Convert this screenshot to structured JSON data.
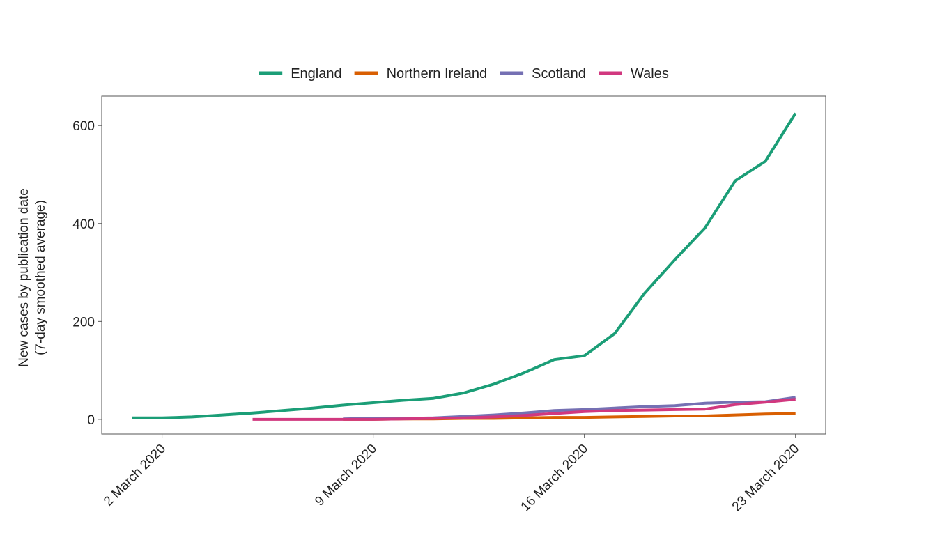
{
  "chart_data": {
    "type": "line",
    "title": "",
    "xlabel": "",
    "ylabel": [
      "New cases by publication date",
      "(7-day smoothed average)"
    ],
    "x_tick_labels": [
      {
        "date": "2020-03-02",
        "label": "2 March 2020"
      },
      {
        "date": "2020-03-09",
        "label": "9 March 2020"
      },
      {
        "date": "2020-03-16",
        "label": "16 March 2020"
      },
      {
        "date": "2020-03-23",
        "label": "23 March 2020"
      }
    ],
    "xlim": [
      "2020-02-29",
      "2020-03-24"
    ],
    "ylim": [
      -30,
      660
    ],
    "y_ticks": [
      0,
      200,
      400,
      600
    ],
    "grid": false,
    "legend_position": "top",
    "series": [
      {
        "name": "England",
        "color": "#1b9e77",
        "points": [
          [
            "2020-03-01",
            3
          ],
          [
            "2020-03-02",
            3
          ],
          [
            "2020-03-03",
            5
          ],
          [
            "2020-03-04",
            9
          ],
          [
            "2020-03-05",
            13
          ],
          [
            "2020-03-06",
            18
          ],
          [
            "2020-03-07",
            23
          ],
          [
            "2020-03-08",
            29
          ],
          [
            "2020-03-09",
            34
          ],
          [
            "2020-03-10",
            39
          ],
          [
            "2020-03-11",
            43
          ],
          [
            "2020-03-12",
            54
          ],
          [
            "2020-03-13",
            72
          ],
          [
            "2020-03-14",
            95
          ],
          [
            "2020-03-15",
            122
          ],
          [
            "2020-03-16",
            130
          ],
          [
            "2020-03-17",
            175
          ],
          [
            "2020-03-18",
            258
          ],
          [
            "2020-03-19",
            326
          ],
          [
            "2020-03-20",
            391
          ],
          [
            "2020-03-21",
            487
          ],
          [
            "2020-03-22",
            527
          ],
          [
            "2020-03-23",
            625
          ]
        ]
      },
      {
        "name": "Northern Ireland",
        "color": "#d95f02",
        "points": [
          [
            "2020-03-08",
            0
          ],
          [
            "2020-03-09",
            0
          ],
          [
            "2020-03-10",
            1
          ],
          [
            "2020-03-11",
            1
          ],
          [
            "2020-03-12",
            2
          ],
          [
            "2020-03-13",
            2
          ],
          [
            "2020-03-14",
            3
          ],
          [
            "2020-03-15",
            4
          ],
          [
            "2020-03-16",
            4
          ],
          [
            "2020-03-17",
            5
          ],
          [
            "2020-03-18",
            6
          ],
          [
            "2020-03-19",
            7
          ],
          [
            "2020-03-20",
            7
          ],
          [
            "2020-03-21",
            9
          ],
          [
            "2020-03-22",
            11
          ],
          [
            "2020-03-23",
            12
          ]
        ]
      },
      {
        "name": "Scotland",
        "color": "#7570b3",
        "points": [
          [
            "2020-03-08",
            1
          ],
          [
            "2020-03-09",
            2
          ],
          [
            "2020-03-10",
            2
          ],
          [
            "2020-03-11",
            3
          ],
          [
            "2020-03-12",
            6
          ],
          [
            "2020-03-13",
            9
          ],
          [
            "2020-03-14",
            13
          ],
          [
            "2020-03-15",
            18
          ],
          [
            "2020-03-16",
            20
          ],
          [
            "2020-03-17",
            23
          ],
          [
            "2020-03-18",
            26
          ],
          [
            "2020-03-19",
            28
          ],
          [
            "2020-03-20",
            33
          ],
          [
            "2020-03-21",
            35
          ],
          [
            "2020-03-22",
            36
          ],
          [
            "2020-03-23",
            45
          ]
        ]
      },
      {
        "name": "Wales",
        "color": "#d1387f",
        "points": [
          [
            "2020-03-05",
            0
          ],
          [
            "2020-03-06",
            0
          ],
          [
            "2020-03-07",
            0
          ],
          [
            "2020-03-08",
            0
          ],
          [
            "2020-03-09",
            0
          ],
          [
            "2020-03-10",
            1
          ],
          [
            "2020-03-11",
            2
          ],
          [
            "2020-03-12",
            3
          ],
          [
            "2020-03-13",
            5
          ],
          [
            "2020-03-14",
            8
          ],
          [
            "2020-03-15",
            12
          ],
          [
            "2020-03-16",
            16
          ],
          [
            "2020-03-17",
            18
          ],
          [
            "2020-03-18",
            19
          ],
          [
            "2020-03-19",
            20
          ],
          [
            "2020-03-20",
            21
          ],
          [
            "2020-03-21",
            30
          ],
          [
            "2020-03-22",
            35
          ],
          [
            "2020-03-23",
            41
          ]
        ]
      }
    ]
  }
}
